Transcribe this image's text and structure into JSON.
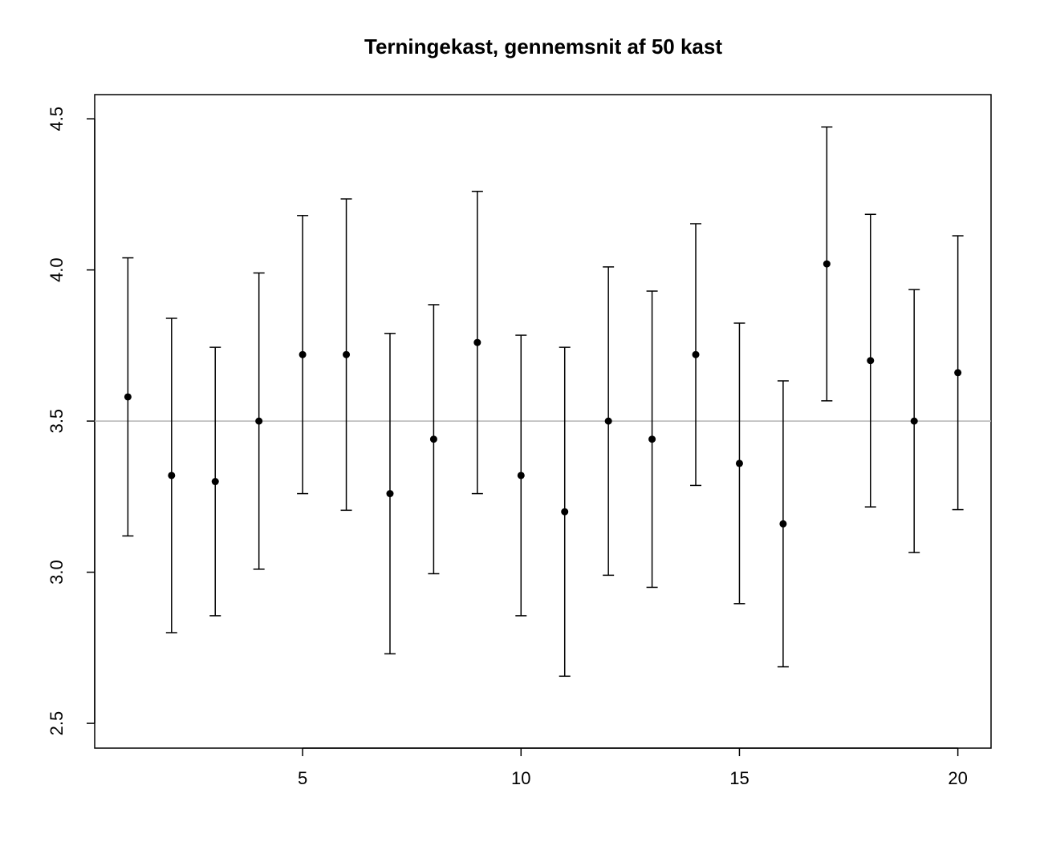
{
  "chart_data": {
    "type": "errorbar",
    "title": "Terningekast, gennemsnit af 50 kast",
    "x": [
      1,
      2,
      3,
      4,
      5,
      6,
      7,
      8,
      9,
      10,
      11,
      12,
      13,
      14,
      15,
      16,
      17,
      18,
      19,
      20
    ],
    "values": [
      3.58,
      3.32,
      3.3,
      3.5,
      3.72,
      3.72,
      3.26,
      3.44,
      3.76,
      3.32,
      3.2,
      3.5,
      3.44,
      3.72,
      3.36,
      3.16,
      4.02,
      3.7,
      3.5,
      3.66
    ],
    "errors": [
      0.46,
      0.52,
      0.444,
      0.49,
      0.46,
      0.515,
      0.53,
      0.445,
      0.5,
      0.464,
      0.544,
      0.51,
      0.49,
      0.433,
      0.464,
      0.473,
      0.453,
      0.484,
      0.435,
      0.453
    ],
    "color": "#000000",
    "reference_line": {
      "value": 3.5,
      "color": "#b3b3b3"
    },
    "xlim": [
      0.24,
      20.76
    ],
    "xticks": [
      5,
      10,
      15,
      20
    ],
    "ylim": [
      2.418,
      4.58
    ],
    "yticks": [
      2.5,
      {
        "value": 3,
        "label": "3.0"
      },
      3.5,
      {
        "value": 4,
        "label": "4.0"
      },
      4.5
    ]
  }
}
